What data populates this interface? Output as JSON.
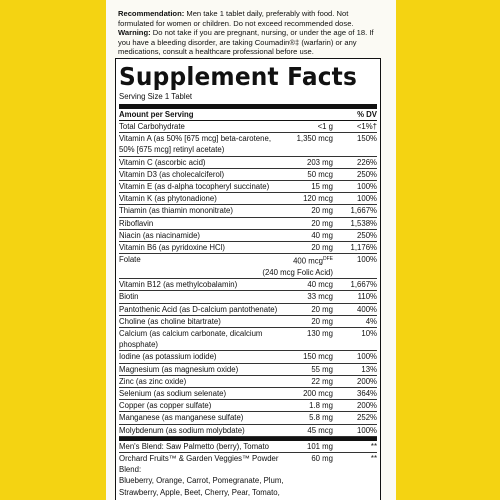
{
  "recommendation": {
    "label": "Recommendation:",
    "text": "Men take 1 tablet daily, preferably with food. Not formulated for women or children. Do not exceed recommended dose.",
    "warning_label": "Warning:",
    "warning_text": "Do not take if you are pregnant, nursing, or under the age of 18. If you have a bleeding disorder, are taking Coumadin®‡ (warfarin) or any medications, consult a healthcare professional before use."
  },
  "facts": {
    "title": "Supplement Facts",
    "serving": "Serving Size 1 Tablet",
    "header": [
      "Amount per Serving",
      "% DV"
    ],
    "rows": [
      {
        "name": "Total Carbohydrate",
        "amount": "<1 g",
        "dv": "<1%†"
      },
      {
        "name": "Vitamin A (as 50% [675 mcg] beta-carotene, 50% [675 mcg] retinyl acetate)",
        "amount": "1,350 mcg",
        "dv": "150%"
      },
      {
        "name": "Vitamin C (ascorbic acid)",
        "amount": "203 mg",
        "dv": "226%"
      },
      {
        "name": "Vitamin D3 (as cholecalciferol)",
        "amount": "50 mcg",
        "dv": "250%"
      },
      {
        "name": "Vitamin E (as d-alpha tocopheryl succinate)",
        "amount": "15 mg",
        "dv": "100%"
      },
      {
        "name": "Vitamin K (as phytonadione)",
        "amount": "120 mcg",
        "dv": "100%"
      },
      {
        "name": "Thiamin (as thiamin mononitrate)",
        "amount": "20 mg",
        "dv": "1,667%"
      },
      {
        "name": "Riboflavin",
        "amount": "20 mg",
        "dv": "1,538%"
      },
      {
        "name": "Niacin (as niacinamide)",
        "amount": "40 mg",
        "dv": "250%"
      },
      {
        "name": "Vitamin B6 (as pyridoxine HCl)",
        "amount": "20 mg",
        "dv": "1,176%"
      },
      {
        "name": "Folate",
        "amount": "400 mcg",
        "amount_unit": "DFE",
        "amount_note": "(240 mcg Folic Acid)",
        "dv": "100%"
      },
      {
        "name": "Vitamin B12 (as methylcobalamin)",
        "amount": "40 mcg",
        "dv": "1,667%"
      },
      {
        "name": "Biotin",
        "amount": "33 mcg",
        "dv": "110%"
      },
      {
        "name": "Pantothenic Acid (as D-calcium pantothenate)",
        "amount": "20 mg",
        "dv": "400%"
      },
      {
        "name": "Choline (as choline bitartrate)",
        "amount": "20 mg",
        "dv": "4%"
      },
      {
        "name": "Calcium (as calcium carbonate, dicalcium phosphate)",
        "amount": "130 mg",
        "dv": "10%"
      },
      {
        "name": "Iodine (as potassium iodide)",
        "amount": "150 mcg",
        "dv": "100%"
      },
      {
        "name": "Magnesium (as magnesium oxide)",
        "amount": "55 mg",
        "dv": "13%"
      },
      {
        "name": "Zinc (as zinc oxide)",
        "amount": "22 mg",
        "dv": "200%"
      },
      {
        "name": "Selenium (as sodium selenate)",
        "amount": "200 mcg",
        "dv": "364%"
      },
      {
        "name": "Copper (as copper sulfate)",
        "amount": "1.8 mg",
        "dv": "200%"
      },
      {
        "name": "Manganese (as manganese sulfate)",
        "amount": "5.8 mg",
        "dv": "252%"
      },
      {
        "name": "Molybdenum (as sodium molybdate)",
        "amount": "45 mcg",
        "dv": "100%"
      }
    ],
    "blends": [
      {
        "name": "Men's Blend: Saw Palmetto (berry), Tomato",
        "amount": "101 mg",
        "dv": "**"
      },
      {
        "name": "Orchard Fruits™ & Garden Veggies™ Powder Blend:",
        "amount": "60 mg",
        "dv": "**",
        "description": "Blueberry, Orange, Carrot, Pomegranate, Plum, Strawberry, Apple, Beet, Cherry, Pear, Tomato, Cauliflower, Raspberry, Açaí, Asparagus, Banana,"
      }
    ]
  }
}
